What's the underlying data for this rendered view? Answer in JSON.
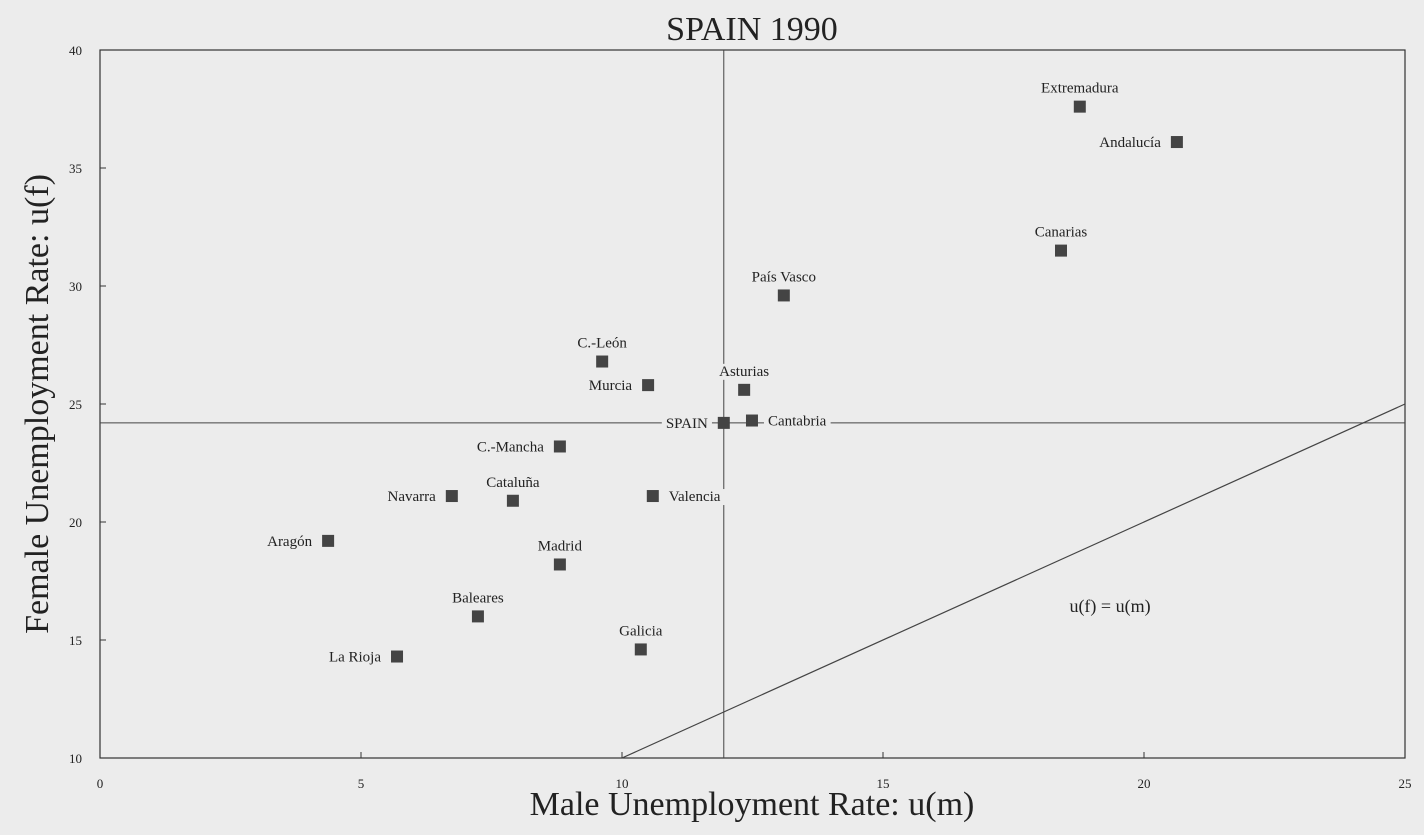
{
  "chart_data": {
    "type": "scatter",
    "title": "SPAIN  1990",
    "x_label": "Male Unemployment Rate: u(m)",
    "y_label": "Female Unemployment Rate: u(f)",
    "annotation": "u(f) = u(m)",
    "xlim": [
      0,
      25
    ],
    "ylim": [
      10,
      40
    ],
    "xticks": [
      0,
      5,
      10,
      15,
      20,
      25
    ],
    "yticks": [
      10,
      15,
      20,
      25,
      30,
      35,
      40
    ],
    "grid": false,
    "color": "#444444",
    "point_labels": [
      "Extremadura",
      "Andalucía",
      "Canarias",
      "País Vasco",
      "C.-León",
      "Murcia",
      "Asturias",
      "SPAIN",
      "Cantabria",
      "C.-Mancha",
      "Navarra",
      "Cataluña",
      "Valencia",
      "Aragón",
      "Madrid",
      "Baleares",
      "Galicia",
      "La Rioja"
    ],
    "x": [
      18.77,
      20.63,
      18.41,
      13.1,
      9.62,
      10.5,
      12.34,
      11.95,
      12.49,
      8.81,
      6.74,
      7.91,
      10.59,
      4.37,
      8.81,
      7.24,
      10.36,
      5.69
    ],
    "values": [
      37.6,
      36.1,
      31.5,
      29.6,
      26.8,
      25.8,
      25.6,
      24.2,
      24.3,
      23.2,
      21.1,
      20.9,
      21.1,
      19.2,
      18.2,
      16.0,
      14.6,
      14.3
    ]
  }
}
